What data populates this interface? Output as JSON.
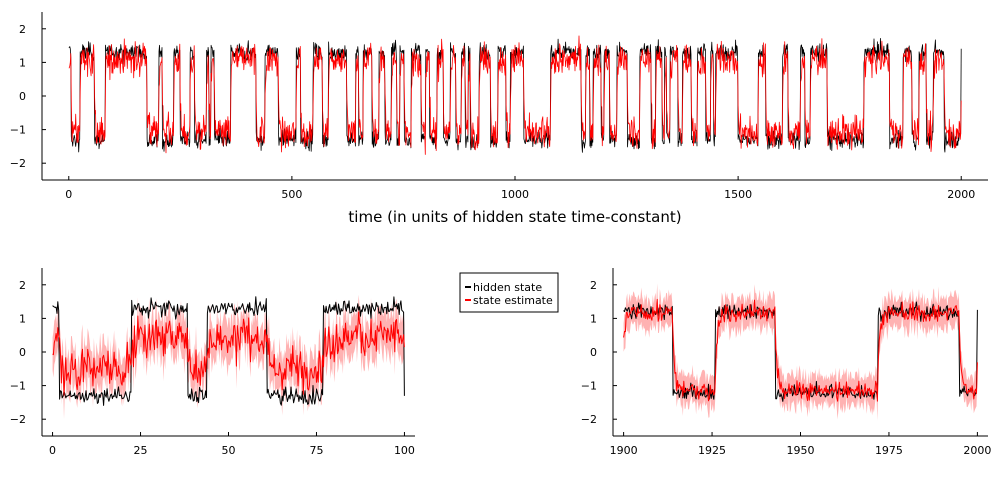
{
  "chart_data": [
    {
      "type": "line",
      "name": "full-trace",
      "title": "",
      "xlabel": "time (in units of hidden state time-constant)",
      "ylabel": "",
      "xlim": [
        -60,
        2060
      ],
      "ylim": [
        -2.5,
        2.5
      ],
      "xticks": [
        0,
        500,
        1000,
        1500,
        2000
      ],
      "yticks": [
        -2,
        -1,
        0,
        1,
        2
      ],
      "grid": false,
      "hidden_state_switch_times": [
        0,
        5,
        25,
        57,
        82,
        175,
        202,
        210,
        235,
        250,
        272,
        282,
        308,
        314,
        318,
        326,
        363,
        420,
        440,
        470,
        510,
        520,
        547,
        568,
        582,
        623,
        643,
        650,
        660,
        680,
        695,
        708,
        723,
        735,
        742,
        752,
        767,
        790,
        800,
        808,
        825,
        840,
        855,
        867,
        880,
        888,
        895,
        900,
        920,
        945,
        962,
        980,
        990,
        1020,
        1080,
        1148,
        1158,
        1167,
        1175,
        1193,
        1200,
        1212,
        1228,
        1252,
        1280,
        1305,
        1315,
        1330,
        1335,
        1340,
        1347,
        1365,
        1375,
        1395,
        1408,
        1427,
        1438,
        1445,
        1450,
        1500,
        1545,
        1562,
        1600,
        1612,
        1640,
        1650,
        1662,
        1700,
        1782,
        1840,
        1870,
        1890,
        1905,
        1922,
        1937,
        1962,
        2000
      ],
      "series": [
        {
          "name": "hidden state",
          "color": "#000000",
          "state_levels": [
            -1.3,
            1.3
          ]
        },
        {
          "name": "state estimate",
          "color": "#ff0000",
          "state_levels": [
            -1.1,
            1.1
          ]
        }
      ]
    },
    {
      "type": "line",
      "name": "zoom-start",
      "title": "",
      "xlabel": "",
      "ylabel": "",
      "xlim": [
        -3,
        103
      ],
      "ylim": [
        -2.5,
        2.5
      ],
      "xticks": [
        0,
        25,
        50,
        75,
        100
      ],
      "yticks": [
        -2,
        -1,
        0,
        1,
        2
      ],
      "grid": false,
      "hidden_state_switch_times": [
        0,
        2,
        22.5,
        38.5,
        44,
        61,
        77,
        100
      ],
      "series": [
        {
          "name": "hidden state",
          "color": "#000000",
          "state_levels": [
            -1.3,
            1.3
          ],
          "noise": 0.18
        },
        {
          "name": "state estimate",
          "color": "#ff0000",
          "state_levels": [
            -0.5,
            0.45
          ],
          "noise": 0.45,
          "band_halfwidth": 0.6
        }
      ]
    },
    {
      "type": "line",
      "name": "zoom-end",
      "title": "",
      "xlabel": "",
      "ylabel": "",
      "xlim": [
        1897,
        2003
      ],
      "ylim": [
        -2.5,
        2.5
      ],
      "xticks": [
        1900,
        1925,
        1950,
        1975,
        2000
      ],
      "yticks": [
        -2,
        -1,
        0,
        1,
        2
      ],
      "grid": false,
      "hidden_state_switch_times": [
        1900,
        1914,
        1926,
        1943,
        1972,
        1995,
        2000
      ],
      "series": [
        {
          "name": "hidden state",
          "color": "#000000",
          "state_levels": [
            -1.2,
            1.2
          ],
          "noise": 0.17
        },
        {
          "name": "state estimate",
          "color": "#ff0000",
          "state_levels": [
            -1.15,
            1.15
          ],
          "noise": 0.2,
          "band_halfwidth": 0.45
        }
      ]
    }
  ],
  "legend": {
    "position": "between-bottom-panels",
    "entries": [
      {
        "label": "hidden state",
        "color": "#000000"
      },
      {
        "label": "state estimate",
        "color": "#ff0000"
      }
    ]
  }
}
